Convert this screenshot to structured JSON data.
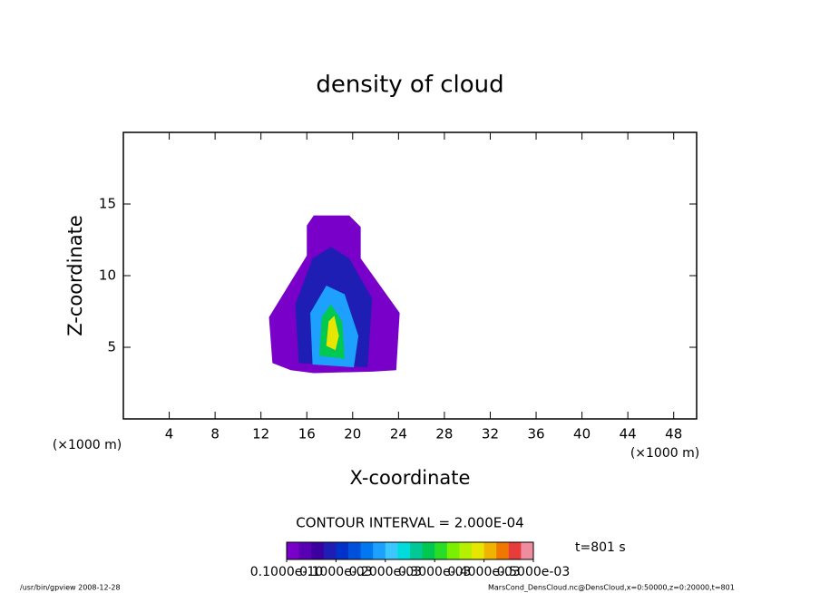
{
  "chart_data": {
    "type": "contour",
    "title": "density of cloud",
    "xlabel": "X-coordinate",
    "ylabel": "Z-coordinate",
    "unit": "(×1000 m)",
    "xlim": [
      0,
      50
    ],
    "ylim": [
      0,
      20
    ],
    "xticks": [
      4,
      8,
      12,
      16,
      20,
      24,
      28,
      32,
      36,
      40,
      44,
      48
    ],
    "yticks": [
      5,
      10,
      15
    ],
    "contour_interval": "CONTOUR INTERVAL = 2.000E-04",
    "time": "t=801 s",
    "footer_left": "/usr/bin/gpview  2008-12-28",
    "footer_right": "MarsCond_DensCloud.nc@DensCloud,x=0:50000,z=0:20000,t=801",
    "clim": [
      0,
      0.0005
    ],
    "colorbar_ticks": [
      {
        "value": 1e-11,
        "label": "0.1000e-10"
      },
      {
        "value": 0.0001,
        "label": "0.1000e-03"
      },
      {
        "value": 0.0002,
        "label": "0.2000e-03"
      },
      {
        "value": 0.0003,
        "label": "0.3000e-03"
      },
      {
        "value": 0.0004,
        "label": "0.4000e-03"
      },
      {
        "value": 0.0005,
        "label": "0.5000e-03"
      }
    ],
    "colormap": [
      "#7800c8",
      "#5a00b4",
      "#3c00a0",
      "#1e1eb4",
      "#0032c8",
      "#0050dc",
      "#0078f0",
      "#1ea0ff",
      "#3cc8ff",
      "#00dcdc",
      "#00c896",
      "#00c850",
      "#28dc28",
      "#78f000",
      "#b4f000",
      "#e6e600",
      "#f0b400",
      "#f07800",
      "#e63c3c",
      "#f08ca0"
    ],
    "contours": [
      {
        "level": 1e-11,
        "x": [
          13.0,
          12.7,
          16.0,
          16.0,
          16.6,
          19.7,
          20.7,
          20.7,
          24.1,
          23.8,
          21.7,
          16.6,
          14.6
        ],
        "y": [
          3.9,
          7.1,
          11.4,
          13.5,
          14.2,
          14.2,
          13.4,
          11.2,
          7.4,
          3.4,
          3.3,
          3.2,
          3.4
        ]
      },
      {
        "level": 0.0001,
        "x": [
          15.3,
          15.0,
          16.5,
          18.1,
          19.7,
          21.7,
          21.3
        ],
        "y": [
          3.9,
          8.0,
          11.2,
          12.0,
          11.2,
          8.4,
          3.6
        ]
      },
      {
        "level": 0.0002,
        "x": [
          16.5,
          16.3,
          17.7,
          19.3,
          20.5,
          20.1
        ],
        "y": [
          3.8,
          7.4,
          9.3,
          8.7,
          5.8,
          3.6
        ]
      },
      {
        "level": 0.0003,
        "x": [
          17.1,
          17.3,
          18.1,
          19.1,
          19.3
        ],
        "y": [
          4.4,
          7.1,
          8.0,
          6.8,
          4.2
        ]
      },
      {
        "level": 0.0004,
        "x": [
          17.7,
          17.9,
          18.4,
          18.8,
          18.5
        ],
        "y": [
          5.1,
          6.8,
          7.2,
          5.8,
          4.8
        ]
      }
    ]
  }
}
